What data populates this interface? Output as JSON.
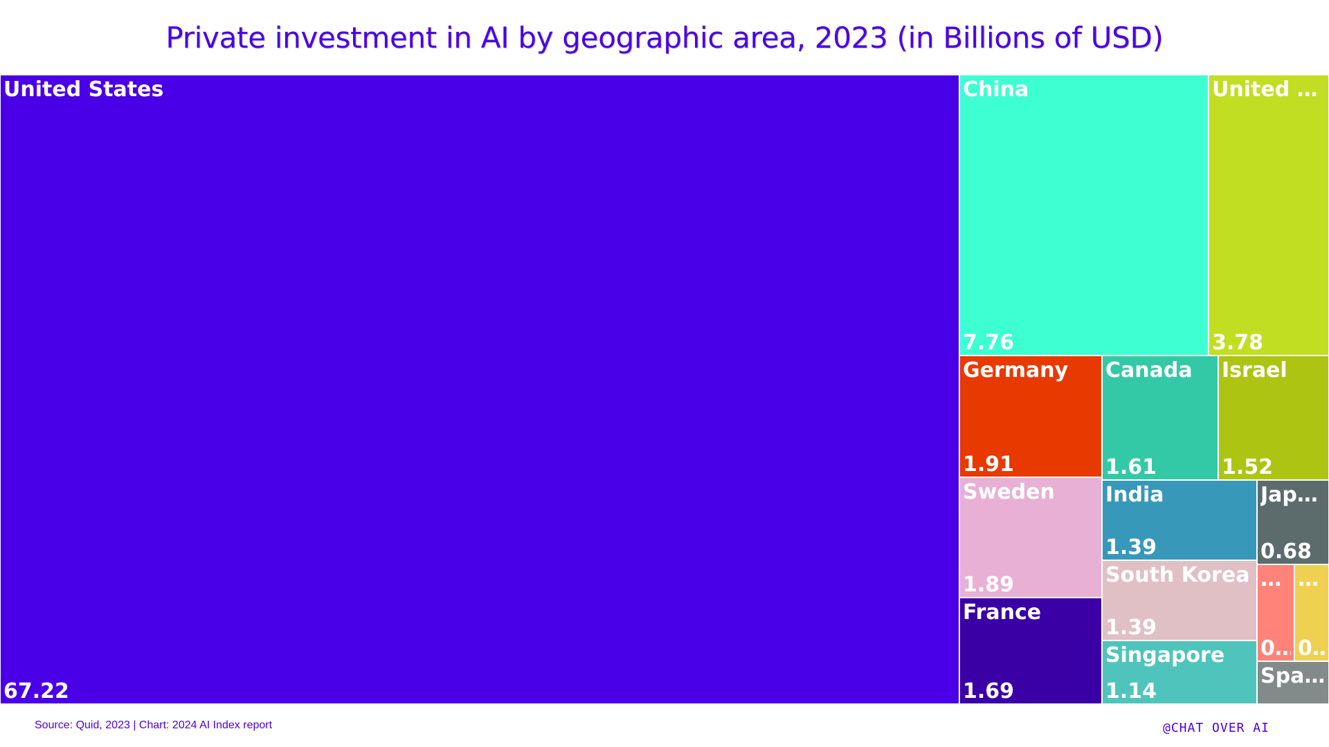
{
  "header": {
    "title": "Private investment in AI by geographic area, 2023 (in Billions of USD)"
  },
  "footer": {
    "source": "Source: Quid, 2023 | Chart: 2024 AI Index report",
    "watermark": "@CHAT OVER AI"
  },
  "chart_data": {
    "type": "treemap",
    "title": "Private investment in AI by geographic area, 2023 (in Billions of USD)",
    "items": [
      {
        "name": "United States",
        "name_label": "United States",
        "value": 67.22,
        "value_label": "67.22",
        "color": "#4a00e6"
      },
      {
        "name": "China",
        "name_label": "China",
        "value": 7.76,
        "value_label": "7.76",
        "color": "#3dffd2"
      },
      {
        "name": "United Kingdom",
        "name_label": "United Ki…",
        "value": 3.78,
        "value_label": "3.78",
        "color": "#c2de22"
      },
      {
        "name": "Germany",
        "name_label": "Germany",
        "value": 1.91,
        "value_label": "1.91",
        "color": "#e83a00"
      },
      {
        "name": "Canada",
        "name_label": "Canada",
        "value": 1.61,
        "value_label": "1.61",
        "color": "#34c9a6"
      },
      {
        "name": "Israel",
        "name_label": "Israel",
        "value": 1.52,
        "value_label": "1.52",
        "color": "#adc413"
      },
      {
        "name": "Sweden",
        "name_label": "Sweden",
        "value": 1.89,
        "value_label": "1.89",
        "color": "#e8b0d4"
      },
      {
        "name": "France",
        "name_label": "France",
        "value": 1.69,
        "value_label": "1.69",
        "color": "#3a00a6"
      },
      {
        "name": "India",
        "name_label": "India",
        "value": 1.39,
        "value_label": "1.39",
        "color": "#3798ba"
      },
      {
        "name": "South Korea",
        "name_label": "South Korea",
        "value": 1.39,
        "value_label": "1.39",
        "color": "#e0c0c4"
      },
      {
        "name": "Singapore",
        "name_label": "Singapore",
        "value": 1.14,
        "value_label": "1.14",
        "color": "#4fc4bc"
      },
      {
        "name": "Japan",
        "name_label": "Japan",
        "value": 0.68,
        "value_label": "0.68",
        "color": "#5c6b6b"
      },
      {
        "name": "",
        "name_label": "…",
        "value": null,
        "value_label": "0…",
        "color": "#ff8378"
      },
      {
        "name": "",
        "name_label": "…",
        "value": null,
        "value_label": "0…",
        "color": "#f0d050"
      },
      {
        "name": "Spain",
        "name_label": "Spain",
        "value": null,
        "value_label": "",
        "color": "#828a8a"
      }
    ]
  }
}
